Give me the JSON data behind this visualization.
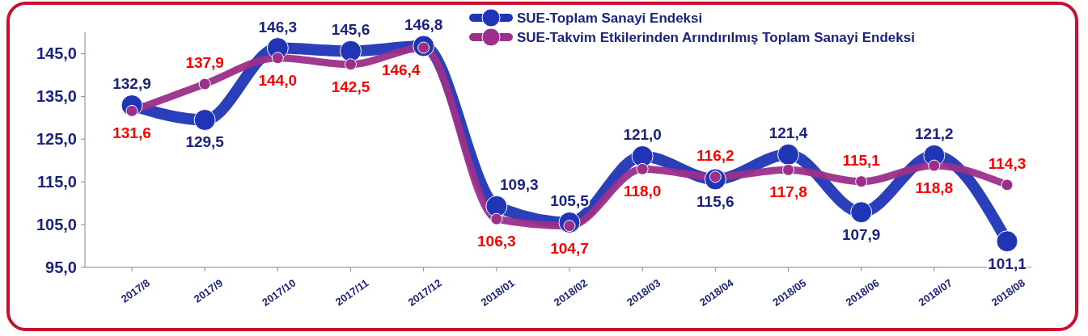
{
  "chart_data": {
    "type": "line",
    "categories": [
      "2017/8",
      "2017/9",
      "2017/10",
      "2017/11",
      "2017/12",
      "2018/01",
      "2018/02",
      "2018/03",
      "2018/04",
      "2018/05",
      "2018/06",
      "2018/07",
      "2018/08"
    ],
    "series": [
      {
        "name": "SUE-Toplam Sanayi Endeksi",
        "color": "#1f35b5",
        "values": [
          132.9,
          129.5,
          146.3,
          145.6,
          146.8,
          109.3,
          105.5,
          121.0,
          115.6,
          121.4,
          107.9,
          121.2,
          101.1
        ],
        "value_labels": [
          "132,9",
          "129,5",
          "146,3",
          "145,6",
          "146,8",
          "109,3",
          "105,5",
          "121,0",
          "115,6",
          "121,4",
          "107,9",
          "121,2",
          "101,1"
        ]
      },
      {
        "name": "SUE-Takvim Etkilerinden Arındırılmış Toplam Sanayi Endeksi",
        "color": "#9b2f8a",
        "values": [
          131.6,
          137.9,
          144.0,
          142.5,
          146.4,
          106.3,
          104.7,
          118.0,
          116.2,
          117.8,
          115.1,
          118.8,
          114.3
        ],
        "value_labels": [
          "131,6",
          "137,9",
          "144,0",
          "142,5",
          "146,4",
          "106,3",
          "104,7",
          "118,0",
          "116,2",
          "117,8",
          "115,1",
          "118,8",
          "114,3"
        ]
      }
    ],
    "ylim": [
      95,
      150
    ],
    "yticks": [
      {
        "value": 95,
        "label": "95,0"
      },
      {
        "value": 105,
        "label": "105,0"
      },
      {
        "value": 115,
        "label": "115,0"
      },
      {
        "value": 125,
        "label": "125,0"
      },
      {
        "value": 135,
        "label": "135,0"
      },
      {
        "value": 145,
        "label": "145,0"
      }
    ],
    "marker": "circle",
    "line_style": "solid",
    "legend": "top right",
    "grid": false
  }
}
